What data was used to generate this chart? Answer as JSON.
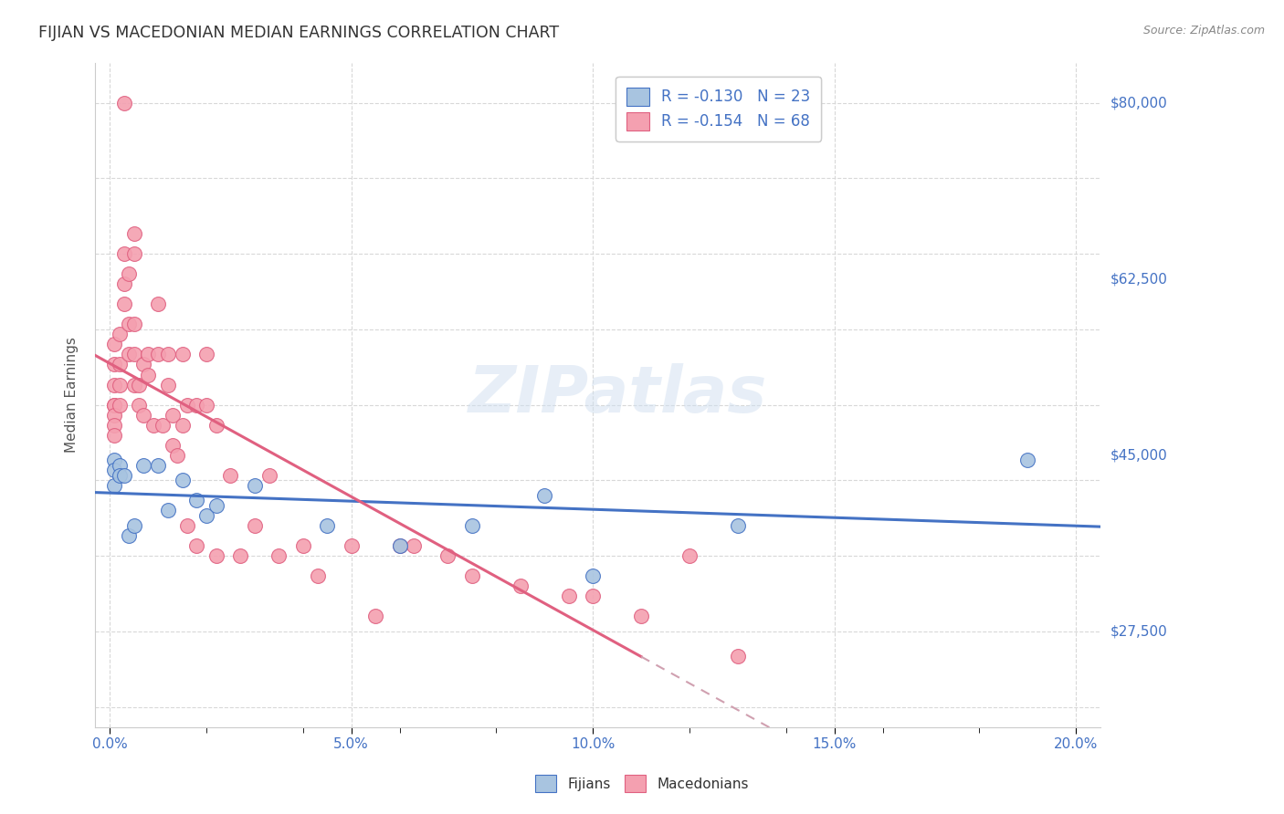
{
  "title": "FIJIAN VS MACEDONIAN MEDIAN EARNINGS CORRELATION CHART",
  "source": "Source: ZipAtlas.com",
  "xlabel_ticks": [
    "0.0%",
    "",
    "",
    "",
    "",
    "5.0%",
    "",
    "",
    "",
    "",
    "10.0%",
    "",
    "",
    "",
    "",
    "15.0%",
    "",
    "",
    "",
    "",
    "20.0%"
  ],
  "xlabel_vals": [
    0.0,
    0.01,
    0.02,
    0.03,
    0.04,
    0.05,
    0.06,
    0.07,
    0.08,
    0.09,
    0.1,
    0.11,
    0.12,
    0.13,
    0.14,
    0.15,
    0.16,
    0.17,
    0.18,
    0.19,
    0.2
  ],
  "xlabel_show": [
    0.0,
    0.05,
    0.1,
    0.15,
    0.2
  ],
  "xlabel_show_labels": [
    "0.0%",
    "5.0%",
    "10.0%",
    "15.0%",
    "20.0%"
  ],
  "ylabel": "Median Earnings",
  "ylim": [
    18000,
    84000
  ],
  "xlim": [
    -0.003,
    0.205
  ],
  "fijian_color": "#a8c4e0",
  "macedonian_color": "#f4a0b0",
  "fijian_line_color": "#4472c4",
  "macedonian_line_color": "#e06080",
  "macedonian_dash_color": "#d0a0b0",
  "watermark": "ZIPatlas",
  "legend_r_fijian": "-0.130",
  "legend_n_fijian": "23",
  "legend_r_macedonian": "-0.154",
  "legend_n_macedonian": "68",
  "fijian_x": [
    0.001,
    0.001,
    0.001,
    0.002,
    0.002,
    0.003,
    0.004,
    0.005,
    0.007,
    0.01,
    0.012,
    0.015,
    0.018,
    0.02,
    0.022,
    0.03,
    0.045,
    0.06,
    0.075,
    0.09,
    0.1,
    0.13,
    0.19
  ],
  "fijian_y": [
    44500,
    43500,
    42000,
    44000,
    43000,
    43000,
    37000,
    38000,
    44000,
    44000,
    39500,
    42500,
    40500,
    39000,
    40000,
    42000,
    38000,
    36000,
    38000,
    41000,
    33000,
    38000,
    44500
  ],
  "macedonian_x": [
    0.001,
    0.001,
    0.001,
    0.001,
    0.001,
    0.001,
    0.001,
    0.001,
    0.002,
    0.002,
    0.002,
    0.002,
    0.003,
    0.003,
    0.003,
    0.003,
    0.004,
    0.004,
    0.004,
    0.005,
    0.005,
    0.005,
    0.005,
    0.005,
    0.006,
    0.006,
    0.007,
    0.007,
    0.008,
    0.008,
    0.009,
    0.01,
    0.01,
    0.011,
    0.012,
    0.012,
    0.013,
    0.013,
    0.014,
    0.015,
    0.015,
    0.016,
    0.016,
    0.018,
    0.018,
    0.02,
    0.02,
    0.022,
    0.022,
    0.025,
    0.027,
    0.03,
    0.033,
    0.035,
    0.04,
    0.043,
    0.05,
    0.055,
    0.06,
    0.063,
    0.07,
    0.075,
    0.085,
    0.095,
    0.1,
    0.11,
    0.12,
    0.13
  ],
  "macedonian_y": [
    56000,
    54000,
    52000,
    50000,
    50000,
    49000,
    48000,
    47000,
    57000,
    54000,
    52000,
    50000,
    80000,
    65000,
    62000,
    60000,
    63000,
    58000,
    55000,
    67000,
    65000,
    58000,
    55000,
    52000,
    52000,
    50000,
    54000,
    49000,
    55000,
    53000,
    48000,
    60000,
    55000,
    48000,
    55000,
    52000,
    49000,
    46000,
    45000,
    55000,
    48000,
    50000,
    38000,
    50000,
    36000,
    55000,
    50000,
    48000,
    35000,
    43000,
    35000,
    38000,
    43000,
    35000,
    36000,
    33000,
    36000,
    29000,
    36000,
    36000,
    35000,
    33000,
    32000,
    31000,
    31000,
    29000,
    35000,
    25000
  ],
  "grid_color": "#d8d8d8",
  "background_color": "#ffffff",
  "title_color": "#333333",
  "axis_label_color": "#555555",
  "tick_color_right": "#4472c4",
  "tick_color_bottom": "#4472c4",
  "legend_text_color": "#333333",
  "legend_value_color": "#4472c4",
  "ytick_positions": [
    27500,
    45000,
    62500,
    80000
  ],
  "ytick_labels": [
    "$27,500",
    "$45,000",
    "$62,500",
    "$80,000"
  ]
}
